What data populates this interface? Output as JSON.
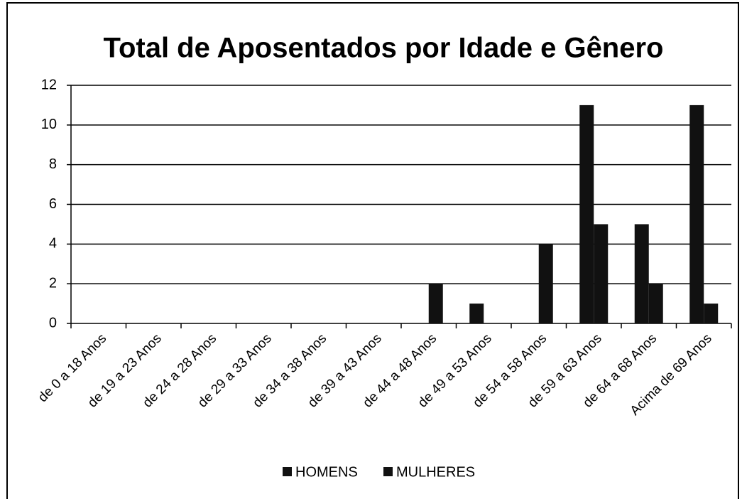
{
  "chart_data": {
    "type": "bar",
    "title": "Total de Aposentados por Idade e Gênero",
    "categories": [
      "de 0 a 18 Anos",
      "de 19 a 23 Anos",
      "de 24 a 28 Anos",
      "de 29 a 33 Anos",
      "de 34 a 38 Anos",
      "de 39 a 43 Anos",
      "de 44 a 48 Anos",
      "de 49 a 53 Anos",
      "de 54 a 58 Anos",
      "de 59 a 63 Anos",
      "de 64 a 68 Anos",
      "Acima de 69 Anos"
    ],
    "series": [
      {
        "name": "HOMENS",
        "color": "#111111",
        "values": [
          0,
          0,
          0,
          0,
          0,
          0,
          0,
          1,
          0,
          11,
          5,
          11
        ]
      },
      {
        "name": "MULHERES",
        "color": "#111111",
        "values": [
          0,
          0,
          0,
          0,
          0,
          0,
          2,
          0,
          4,
          5,
          2,
          1
        ]
      }
    ],
    "ylim": [
      0,
      12
    ],
    "yticks": [
      0,
      2,
      4,
      6,
      8,
      10,
      12
    ],
    "grid": true,
    "legend": "bottom"
  }
}
